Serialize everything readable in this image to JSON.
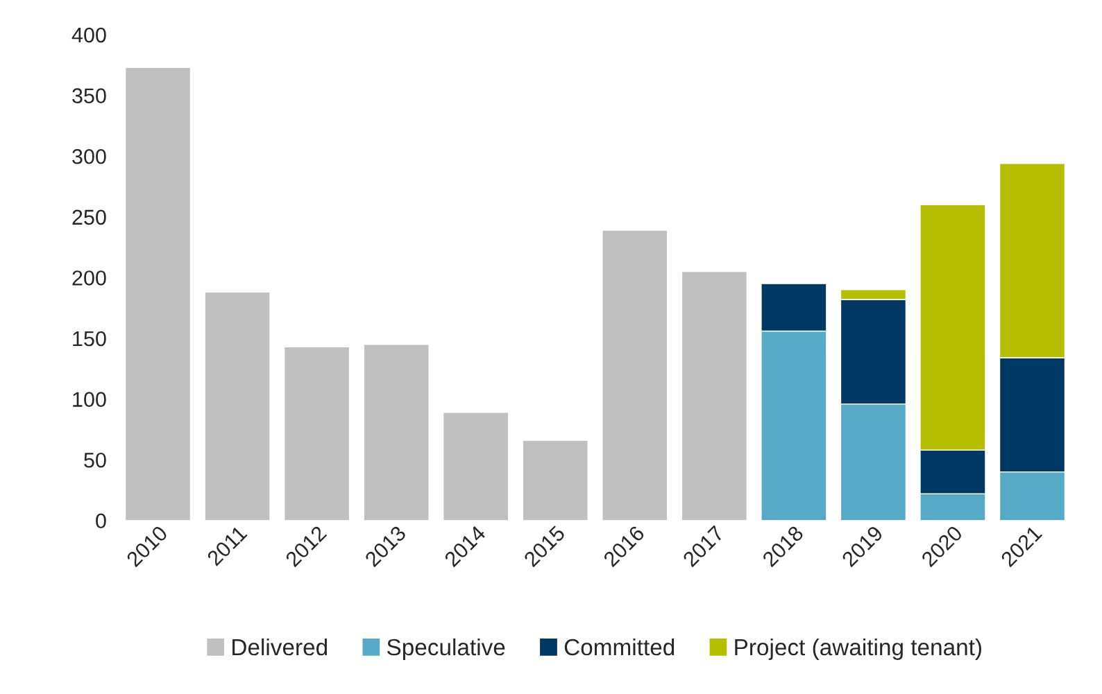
{
  "chart_data": {
    "type": "bar",
    "stacked": true,
    "categories": [
      "2010",
      "2011",
      "2012",
      "2013",
      "2014",
      "2015",
      "2016",
      "2017",
      "2018",
      "2019",
      "2020",
      "2021"
    ],
    "series": [
      {
        "name": "Delivered",
        "color": "#c0c0c0",
        "values": [
          373,
          188,
          143,
          145,
          89,
          66,
          239,
          205,
          null,
          null,
          null,
          null
        ]
      },
      {
        "name": "Speculative",
        "color": "#56aac7",
        "values": [
          null,
          null,
          null,
          null,
          null,
          null,
          null,
          null,
          156,
          96,
          22,
          40
        ]
      },
      {
        "name": "Committed",
        "color": "#003865",
        "values": [
          null,
          null,
          null,
          null,
          null,
          null,
          null,
          null,
          39,
          86,
          36,
          94
        ]
      },
      {
        "name": "Project (awaiting tenant)",
        "color": "#b5be00",
        "values": [
          null,
          null,
          null,
          null,
          null,
          null,
          null,
          null,
          null,
          8,
          202,
          160
        ]
      }
    ],
    "ylim": [
      0,
      400
    ],
    "yticks": [
      0,
      50,
      100,
      150,
      200,
      250,
      300,
      350,
      400
    ],
    "grid": false,
    "legend": "bottom"
  }
}
